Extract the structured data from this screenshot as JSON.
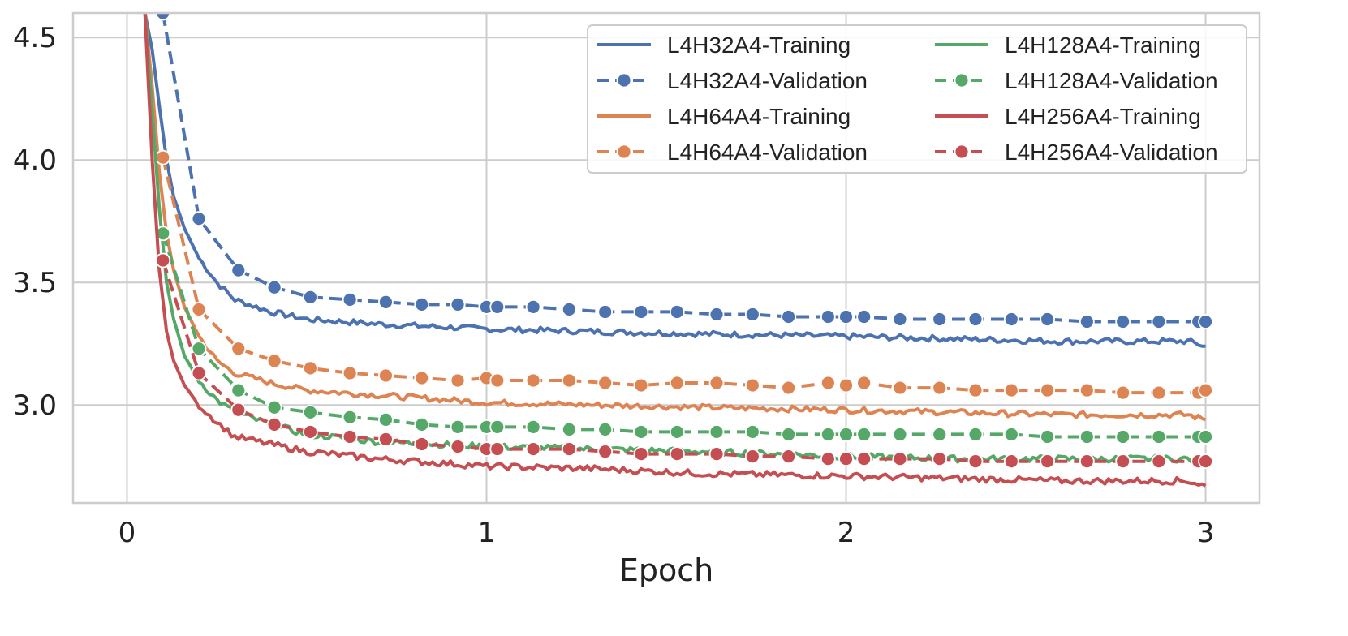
{
  "chart_data": {
    "type": "line",
    "xlabel": "Epoch",
    "ylabel": "",
    "xlim": [
      -0.15,
      3.15
    ],
    "ylim": [
      2.6,
      4.6
    ],
    "xticks": [
      0,
      1,
      2,
      3
    ],
    "yticks": [
      3.0,
      3.5,
      4.0,
      4.5
    ],
    "grid": true,
    "legend": {
      "placement": "top-right",
      "columns": 2
    },
    "colors": {
      "blue": "#4C72B0",
      "orange": "#DD8452",
      "green": "#55A868",
      "red": "#C44E52"
    },
    "series": [
      {
        "name": "L4H32A4-Training",
        "color": "#4C72B0",
        "style": "solid",
        "x": [
          0.05,
          0.07,
          0.09,
          0.11,
          0.13,
          0.16,
          0.2,
          0.25,
          0.3,
          0.4,
          0.5,
          0.7,
          1.0,
          1.3,
          1.6,
          2.0,
          2.3,
          2.6,
          2.95,
          3.0
        ],
        "y": [
          4.6,
          4.45,
          4.22,
          4.0,
          3.85,
          3.72,
          3.6,
          3.5,
          3.43,
          3.38,
          3.35,
          3.33,
          3.31,
          3.3,
          3.29,
          3.28,
          3.27,
          3.26,
          3.26,
          3.24
        ],
        "noise": 0.012
      },
      {
        "name": "L4H32A4-Validation",
        "color": "#4C72B0",
        "style": "dashed",
        "x": [
          0.1,
          0.2,
          0.31,
          0.41,
          0.51,
          0.62,
          0.72,
          0.82,
          0.92,
          1.0,
          1.03,
          1.13,
          1.23,
          1.33,
          1.43,
          1.53,
          1.64,
          1.74,
          1.84,
          1.95,
          2.0,
          2.05,
          2.15,
          2.26,
          2.36,
          2.46,
          2.56,
          2.67,
          2.77,
          2.87,
          2.98,
          3.0
        ],
        "y": [
          4.6,
          3.76,
          3.55,
          3.48,
          3.44,
          3.43,
          3.42,
          3.41,
          3.41,
          3.4,
          3.4,
          3.4,
          3.39,
          3.38,
          3.38,
          3.38,
          3.37,
          3.37,
          3.36,
          3.36,
          3.36,
          3.36,
          3.35,
          3.35,
          3.35,
          3.35,
          3.35,
          3.34,
          3.34,
          3.34,
          3.34,
          3.34
        ]
      },
      {
        "name": "L4H64A4-Training",
        "color": "#DD8452",
        "style": "solid",
        "x": [
          0.05,
          0.07,
          0.09,
          0.11,
          0.13,
          0.16,
          0.2,
          0.25,
          0.3,
          0.4,
          0.5,
          0.7,
          1.0,
          1.3,
          1.6,
          2.0,
          2.3,
          2.6,
          2.95,
          3.0
        ],
        "y": [
          4.6,
          4.3,
          3.95,
          3.7,
          3.55,
          3.4,
          3.28,
          3.18,
          3.13,
          3.09,
          3.06,
          3.04,
          3.01,
          3.0,
          2.99,
          2.98,
          2.97,
          2.96,
          2.96,
          2.94
        ],
        "noise": 0.012
      },
      {
        "name": "L4H64A4-Validation",
        "color": "#DD8452",
        "style": "dashed",
        "x": [
          0.1,
          0.2,
          0.31,
          0.41,
          0.51,
          0.62,
          0.72,
          0.82,
          0.92,
          1.0,
          1.03,
          1.13,
          1.23,
          1.33,
          1.43,
          1.53,
          1.64,
          1.74,
          1.84,
          1.95,
          2.0,
          2.05,
          2.15,
          2.26,
          2.36,
          2.46,
          2.56,
          2.67,
          2.77,
          2.87,
          2.98,
          3.0
        ],
        "y": [
          4.01,
          3.39,
          3.23,
          3.18,
          3.15,
          3.13,
          3.12,
          3.11,
          3.1,
          3.11,
          3.1,
          3.1,
          3.1,
          3.09,
          3.08,
          3.09,
          3.09,
          3.08,
          3.07,
          3.09,
          3.08,
          3.09,
          3.07,
          3.07,
          3.06,
          3.06,
          3.06,
          3.06,
          3.05,
          3.05,
          3.05,
          3.06
        ]
      },
      {
        "name": "L4H128A4-Training",
        "color": "#55A868",
        "style": "solid",
        "x": [
          0.05,
          0.07,
          0.09,
          0.11,
          0.13,
          0.16,
          0.2,
          0.25,
          0.3,
          0.4,
          0.5,
          0.7,
          1.0,
          1.3,
          1.6,
          2.0,
          2.3,
          2.6,
          2.95,
          3.0
        ],
        "y": [
          4.6,
          4.2,
          3.8,
          3.5,
          3.35,
          3.2,
          3.1,
          3.02,
          2.97,
          2.92,
          2.88,
          2.85,
          2.83,
          2.82,
          2.81,
          2.79,
          2.78,
          2.78,
          2.78,
          2.76
        ],
        "noise": 0.013
      },
      {
        "name": "L4H128A4-Validation",
        "color": "#55A868",
        "style": "dashed",
        "x": [
          0.1,
          0.2,
          0.31,
          0.41,
          0.51,
          0.62,
          0.72,
          0.82,
          0.92,
          1.0,
          1.03,
          1.13,
          1.23,
          1.33,
          1.43,
          1.53,
          1.64,
          1.74,
          1.84,
          1.95,
          2.0,
          2.05,
          2.15,
          2.26,
          2.36,
          2.46,
          2.56,
          2.67,
          2.77,
          2.87,
          2.98,
          3.0
        ],
        "y": [
          3.7,
          3.23,
          3.06,
          2.99,
          2.97,
          2.95,
          2.94,
          2.92,
          2.91,
          2.91,
          2.91,
          2.91,
          2.9,
          2.9,
          2.89,
          2.89,
          2.89,
          2.89,
          2.88,
          2.88,
          2.88,
          2.88,
          2.88,
          2.88,
          2.88,
          2.88,
          2.87,
          2.87,
          2.87,
          2.87,
          2.87,
          2.87
        ]
      },
      {
        "name": "L4H256A4-Training",
        "color": "#C44E52",
        "style": "solid",
        "x": [
          0.05,
          0.07,
          0.09,
          0.11,
          0.13,
          0.16,
          0.2,
          0.25,
          0.3,
          0.4,
          0.5,
          0.7,
          1.0,
          1.3,
          1.6,
          2.0,
          2.3,
          2.6,
          2.95,
          3.0
        ],
        "y": [
          4.6,
          4.0,
          3.55,
          3.3,
          3.18,
          3.08,
          3.0,
          2.93,
          2.87,
          2.84,
          2.81,
          2.78,
          2.75,
          2.74,
          2.72,
          2.71,
          2.7,
          2.69,
          2.69,
          2.67
        ],
        "noise": 0.013
      },
      {
        "name": "L4H256A4-Validation",
        "color": "#C44E52",
        "style": "dashed",
        "x": [
          0.1,
          0.2,
          0.31,
          0.41,
          0.51,
          0.62,
          0.72,
          0.82,
          0.92,
          1.0,
          1.03,
          1.13,
          1.23,
          1.33,
          1.43,
          1.53,
          1.64,
          1.74,
          1.84,
          1.95,
          2.0,
          2.05,
          2.15,
          2.26,
          2.36,
          2.46,
          2.56,
          2.67,
          2.77,
          2.87,
          2.98,
          3.0
        ],
        "y": [
          3.59,
          3.13,
          2.98,
          2.92,
          2.89,
          2.87,
          2.86,
          2.84,
          2.83,
          2.82,
          2.82,
          2.82,
          2.82,
          2.81,
          2.8,
          2.8,
          2.8,
          2.79,
          2.79,
          2.78,
          2.78,
          2.78,
          2.78,
          2.78,
          2.77,
          2.77,
          2.77,
          2.77,
          2.77,
          2.77,
          2.77,
          2.77
        ]
      }
    ]
  }
}
